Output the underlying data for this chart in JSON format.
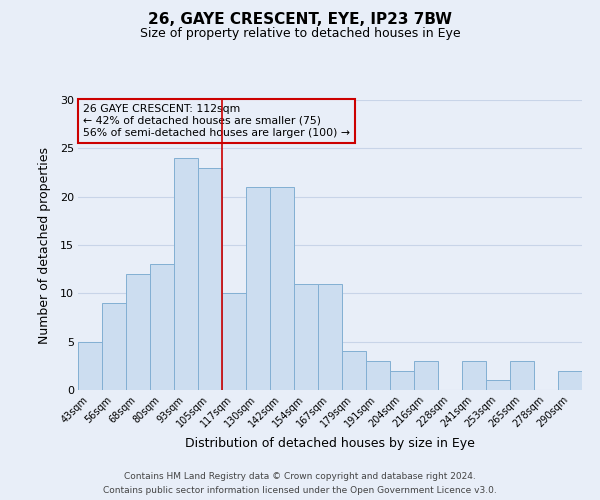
{
  "title": "26, GAYE CRESCENT, EYE, IP23 7BW",
  "subtitle": "Size of property relative to detached houses in Eye",
  "xlabel": "Distribution of detached houses by size in Eye",
  "ylabel": "Number of detached properties",
  "categories": [
    "43sqm",
    "56sqm",
    "68sqm",
    "80sqm",
    "93sqm",
    "105sqm",
    "117sqm",
    "130sqm",
    "142sqm",
    "154sqm",
    "167sqm",
    "179sqm",
    "191sqm",
    "204sqm",
    "216sqm",
    "228sqm",
    "241sqm",
    "253sqm",
    "265sqm",
    "278sqm",
    "290sqm"
  ],
  "values": [
    5,
    9,
    12,
    13,
    24,
    23,
    10,
    21,
    21,
    11,
    11,
    4,
    3,
    2,
    3,
    0,
    3,
    1,
    3,
    0,
    2
  ],
  "bar_color": "#ccddf0",
  "bar_edge_color": "#82afd3",
  "ylim": [
    0,
    30
  ],
  "yticks": [
    0,
    5,
    10,
    15,
    20,
    25,
    30
  ],
  "vline_x_index": 5.5,
  "vline_color": "#cc0000",
  "annotation_line1": "26 GAYE CRESCENT: 112sqm",
  "annotation_line2": "← 42% of detached houses are smaller (75)",
  "annotation_line3": "56% of semi-detached houses are larger (100) →",
  "annotation_box_edgecolor": "#cc0000",
  "footer1": "Contains HM Land Registry data © Crown copyright and database right 2024.",
  "footer2": "Contains public sector information licensed under the Open Government Licence v3.0.",
  "background_color": "#e8eef8",
  "plot_bg_color": "#e8eef8",
  "grid_color": "#c8d4e8"
}
